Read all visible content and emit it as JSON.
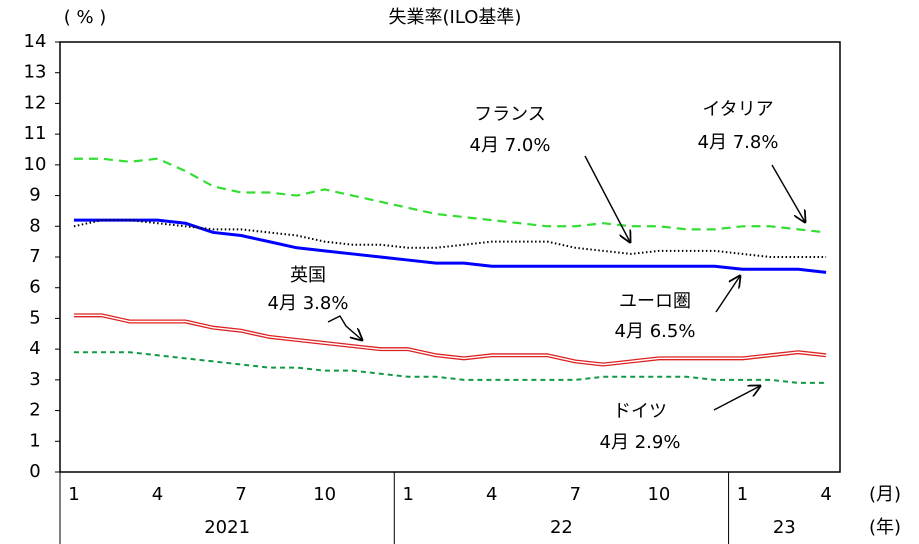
{
  "chart_data": {
    "type": "line",
    "title": "失業率(ILO基準)",
    "y_label": "( % )",
    "x_label": "(月)",
    "year_label": "(年)",
    "categories": [
      "1",
      null,
      null,
      "4",
      null,
      null,
      "7",
      null,
      null,
      "10",
      null,
      null,
      "1",
      null,
      null,
      "4",
      null,
      null,
      "7",
      null,
      null,
      "10",
      null,
      null,
      "1",
      null,
      null,
      "4"
    ],
    "years": [
      "2021",
      "22",
      "23"
    ],
    "ylim": [
      0,
      14
    ],
    "yticks": [
      0,
      1,
      2,
      3,
      4,
      5,
      6,
      7,
      8,
      9,
      10,
      11,
      12,
      13,
      14
    ],
    "series": [
      {
        "name": "ユーロ圏",
        "annotation": "4月 6.5%",
        "color": "#0000ff",
        "style": "solid",
        "values": [
          8.2,
          8.2,
          8.2,
          8.2,
          8.1,
          7.8,
          7.7,
          7.5,
          7.3,
          7.2,
          7.1,
          7.0,
          6.9,
          6.8,
          6.8,
          6.7,
          6.7,
          6.7,
          6.7,
          6.7,
          6.7,
          6.7,
          6.7,
          6.7,
          6.6,
          6.6,
          6.6,
          6.5
        ]
      },
      {
        "name": "フランス",
        "annotation": "4月 7.0%",
        "color": "#000000",
        "style": "dotted",
        "values": [
          8.0,
          8.2,
          8.2,
          8.1,
          8.0,
          7.9,
          7.9,
          7.8,
          7.7,
          7.5,
          7.4,
          7.4,
          7.3,
          7.3,
          7.4,
          7.5,
          7.5,
          7.5,
          7.3,
          7.2,
          7.1,
          7.2,
          7.2,
          7.2,
          7.1,
          7.0,
          7.0,
          7.0
        ]
      },
      {
        "name": "イタリア",
        "annotation": "4月 7.8%",
        "color": "#33dd33",
        "style": "dashed",
        "values": [
          10.2,
          10.2,
          10.1,
          10.2,
          9.8,
          9.3,
          9.1,
          9.1,
          9.0,
          9.2,
          9.0,
          8.8,
          8.6,
          8.4,
          8.3,
          8.2,
          8.1,
          8.0,
          8.0,
          8.1,
          8.0,
          8.0,
          7.9,
          7.9,
          8.0,
          8.0,
          7.9,
          7.8
        ]
      },
      {
        "name": "英国",
        "annotation": "4月 3.8%",
        "color": "#dd2222",
        "style": "double",
        "values": [
          5.1,
          5.1,
          4.9,
          4.9,
          4.9,
          4.7,
          4.6,
          4.4,
          4.3,
          4.2,
          4.1,
          4.0,
          4.0,
          3.8,
          3.7,
          3.8,
          3.8,
          3.8,
          3.6,
          3.5,
          3.6,
          3.7,
          3.7,
          3.7,
          3.7,
          3.8,
          3.9,
          3.8
        ]
      },
      {
        "name": "ドイツ",
        "annotation": "4月 2.9%",
        "color": "#119944",
        "style": "shortdash",
        "values": [
          3.9,
          3.9,
          3.9,
          3.8,
          3.7,
          3.6,
          3.5,
          3.4,
          3.4,
          3.3,
          3.3,
          3.2,
          3.1,
          3.1,
          3.0,
          3.0,
          3.0,
          3.0,
          3.0,
          3.1,
          3.1,
          3.1,
          3.1,
          3.0,
          3.0,
          3.0,
          2.9,
          2.9
        ]
      }
    ]
  }
}
